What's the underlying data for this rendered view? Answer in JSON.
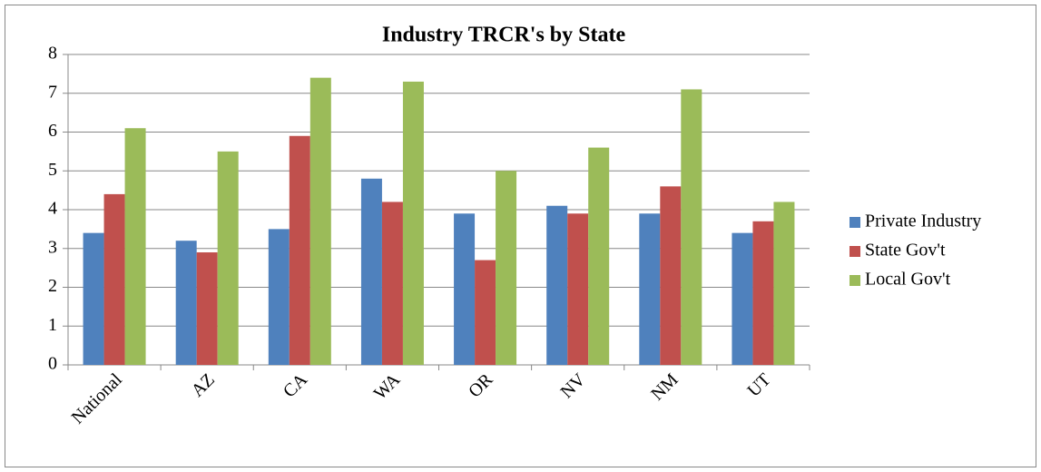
{
  "chart_data": {
    "type": "bar",
    "title": "Industry TRCR's by State",
    "categories": [
      "National",
      "AZ",
      "CA",
      "WA",
      "OR",
      "NV",
      "NM",
      "UT"
    ],
    "series": [
      {
        "name": "Private Industry",
        "color": "#4f81bd",
        "values": [
          3.4,
          3.2,
          3.5,
          4.8,
          3.9,
          4.1,
          3.9,
          3.4
        ]
      },
      {
        "name": "State Gov't",
        "color": "#c0504d",
        "values": [
          4.4,
          2.9,
          5.9,
          4.2,
          2.7,
          3.9,
          4.6,
          3.7
        ]
      },
      {
        "name": "Local Gov't",
        "color": "#9bbb59",
        "values": [
          6.1,
          5.5,
          7.4,
          7.3,
          5.0,
          5.6,
          7.1,
          4.2
        ]
      }
    ],
    "ylim": [
      0,
      8
    ],
    "yticks": [
      0,
      1,
      2,
      3,
      4,
      5,
      6,
      7,
      8
    ],
    "grid": true,
    "legend": "right"
  }
}
